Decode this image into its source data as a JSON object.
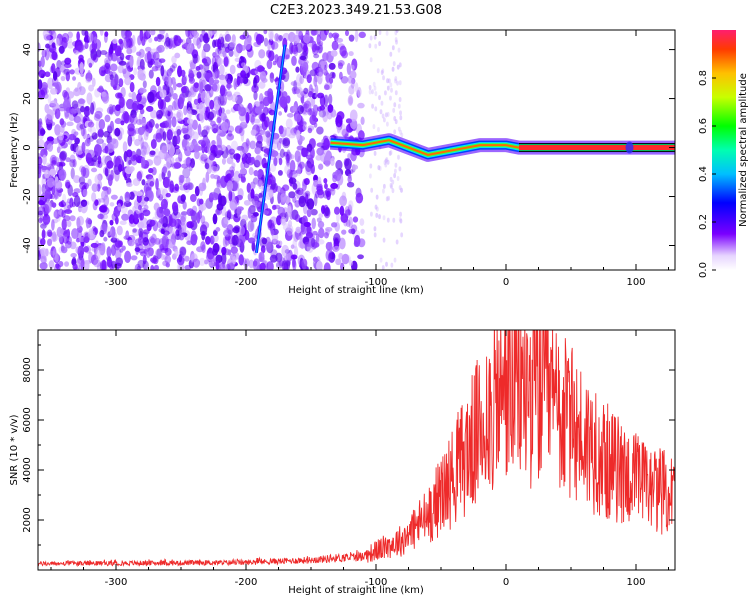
{
  "title": "C2E3.2023.349.21.53.G08",
  "chart_data": [
    {
      "type": "heatmap",
      "xlabel": "Height of straight line (km)",
      "ylabel": "Frequency (Hz)",
      "xlim": [
        -360,
        130
      ],
      "ylim": [
        -50,
        48
      ],
      "xticks": [
        -300,
        -200,
        -100,
        0,
        100
      ],
      "yticks": [
        -40,
        -20,
        0,
        20,
        40
      ],
      "colorbar": {
        "label": "Normalized spectral amplitude",
        "range": [
          0.0,
          1.0
        ],
        "ticks": [
          0.0,
          0.2,
          0.4,
          0.6,
          0.8
        ],
        "colormap": "rainbow"
      },
      "noise_region_x": [
        -360,
        -110
      ],
      "ridge": [
        [
          -135,
          2
        ],
        [
          -110,
          1
        ],
        [
          -90,
          3
        ],
        [
          -75,
          0
        ],
        [
          -60,
          -3
        ],
        [
          -40,
          -1
        ],
        [
          -20,
          1
        ],
        [
          0,
          1
        ],
        [
          10,
          0
        ],
        [
          130,
          0
        ]
      ],
      "diagonal_streak": [
        [
          -192,
          -43
        ],
        [
          -170,
          42
        ]
      ],
      "colors": {
        "low": "#8a2be2",
        "high": "#ff1e50",
        "trace": "#ff2020"
      }
    },
    {
      "type": "line",
      "xlabel": "Height of straight line (km)",
      "ylabel": "SNR (10 * v/v)",
      "xlim": [
        -360,
        130
      ],
      "ylim": [
        0,
        9600
      ],
      "xticks": [
        -300,
        -200,
        -100,
        0,
        100
      ],
      "yticks": [
        2000,
        4000,
        6000,
        8000
      ],
      "series": [
        {
          "color": "#ee2a2a",
          "envelope": [
            {
              "x": -360,
              "y": 250
            },
            {
              "x": -200,
              "y": 300
            },
            {
              "x": -150,
              "y": 400
            },
            {
              "x": -110,
              "y": 550
            },
            {
              "x": -80,
              "y": 1200
            },
            {
              "x": -60,
              "y": 2200
            },
            {
              "x": -40,
              "y": 3800
            },
            {
              "x": -25,
              "y": 5200
            },
            {
              "x": -10,
              "y": 6500
            },
            {
              "x": 0,
              "y": 7300
            },
            {
              "x": 15,
              "y": 7200
            },
            {
              "x": 30,
              "y": 7000
            },
            {
              "x": 50,
              "y": 5800
            },
            {
              "x": 80,
              "y": 4200
            },
            {
              "x": 110,
              "y": 3300
            },
            {
              "x": 130,
              "y": 3000
            }
          ]
        }
      ]
    }
  ]
}
